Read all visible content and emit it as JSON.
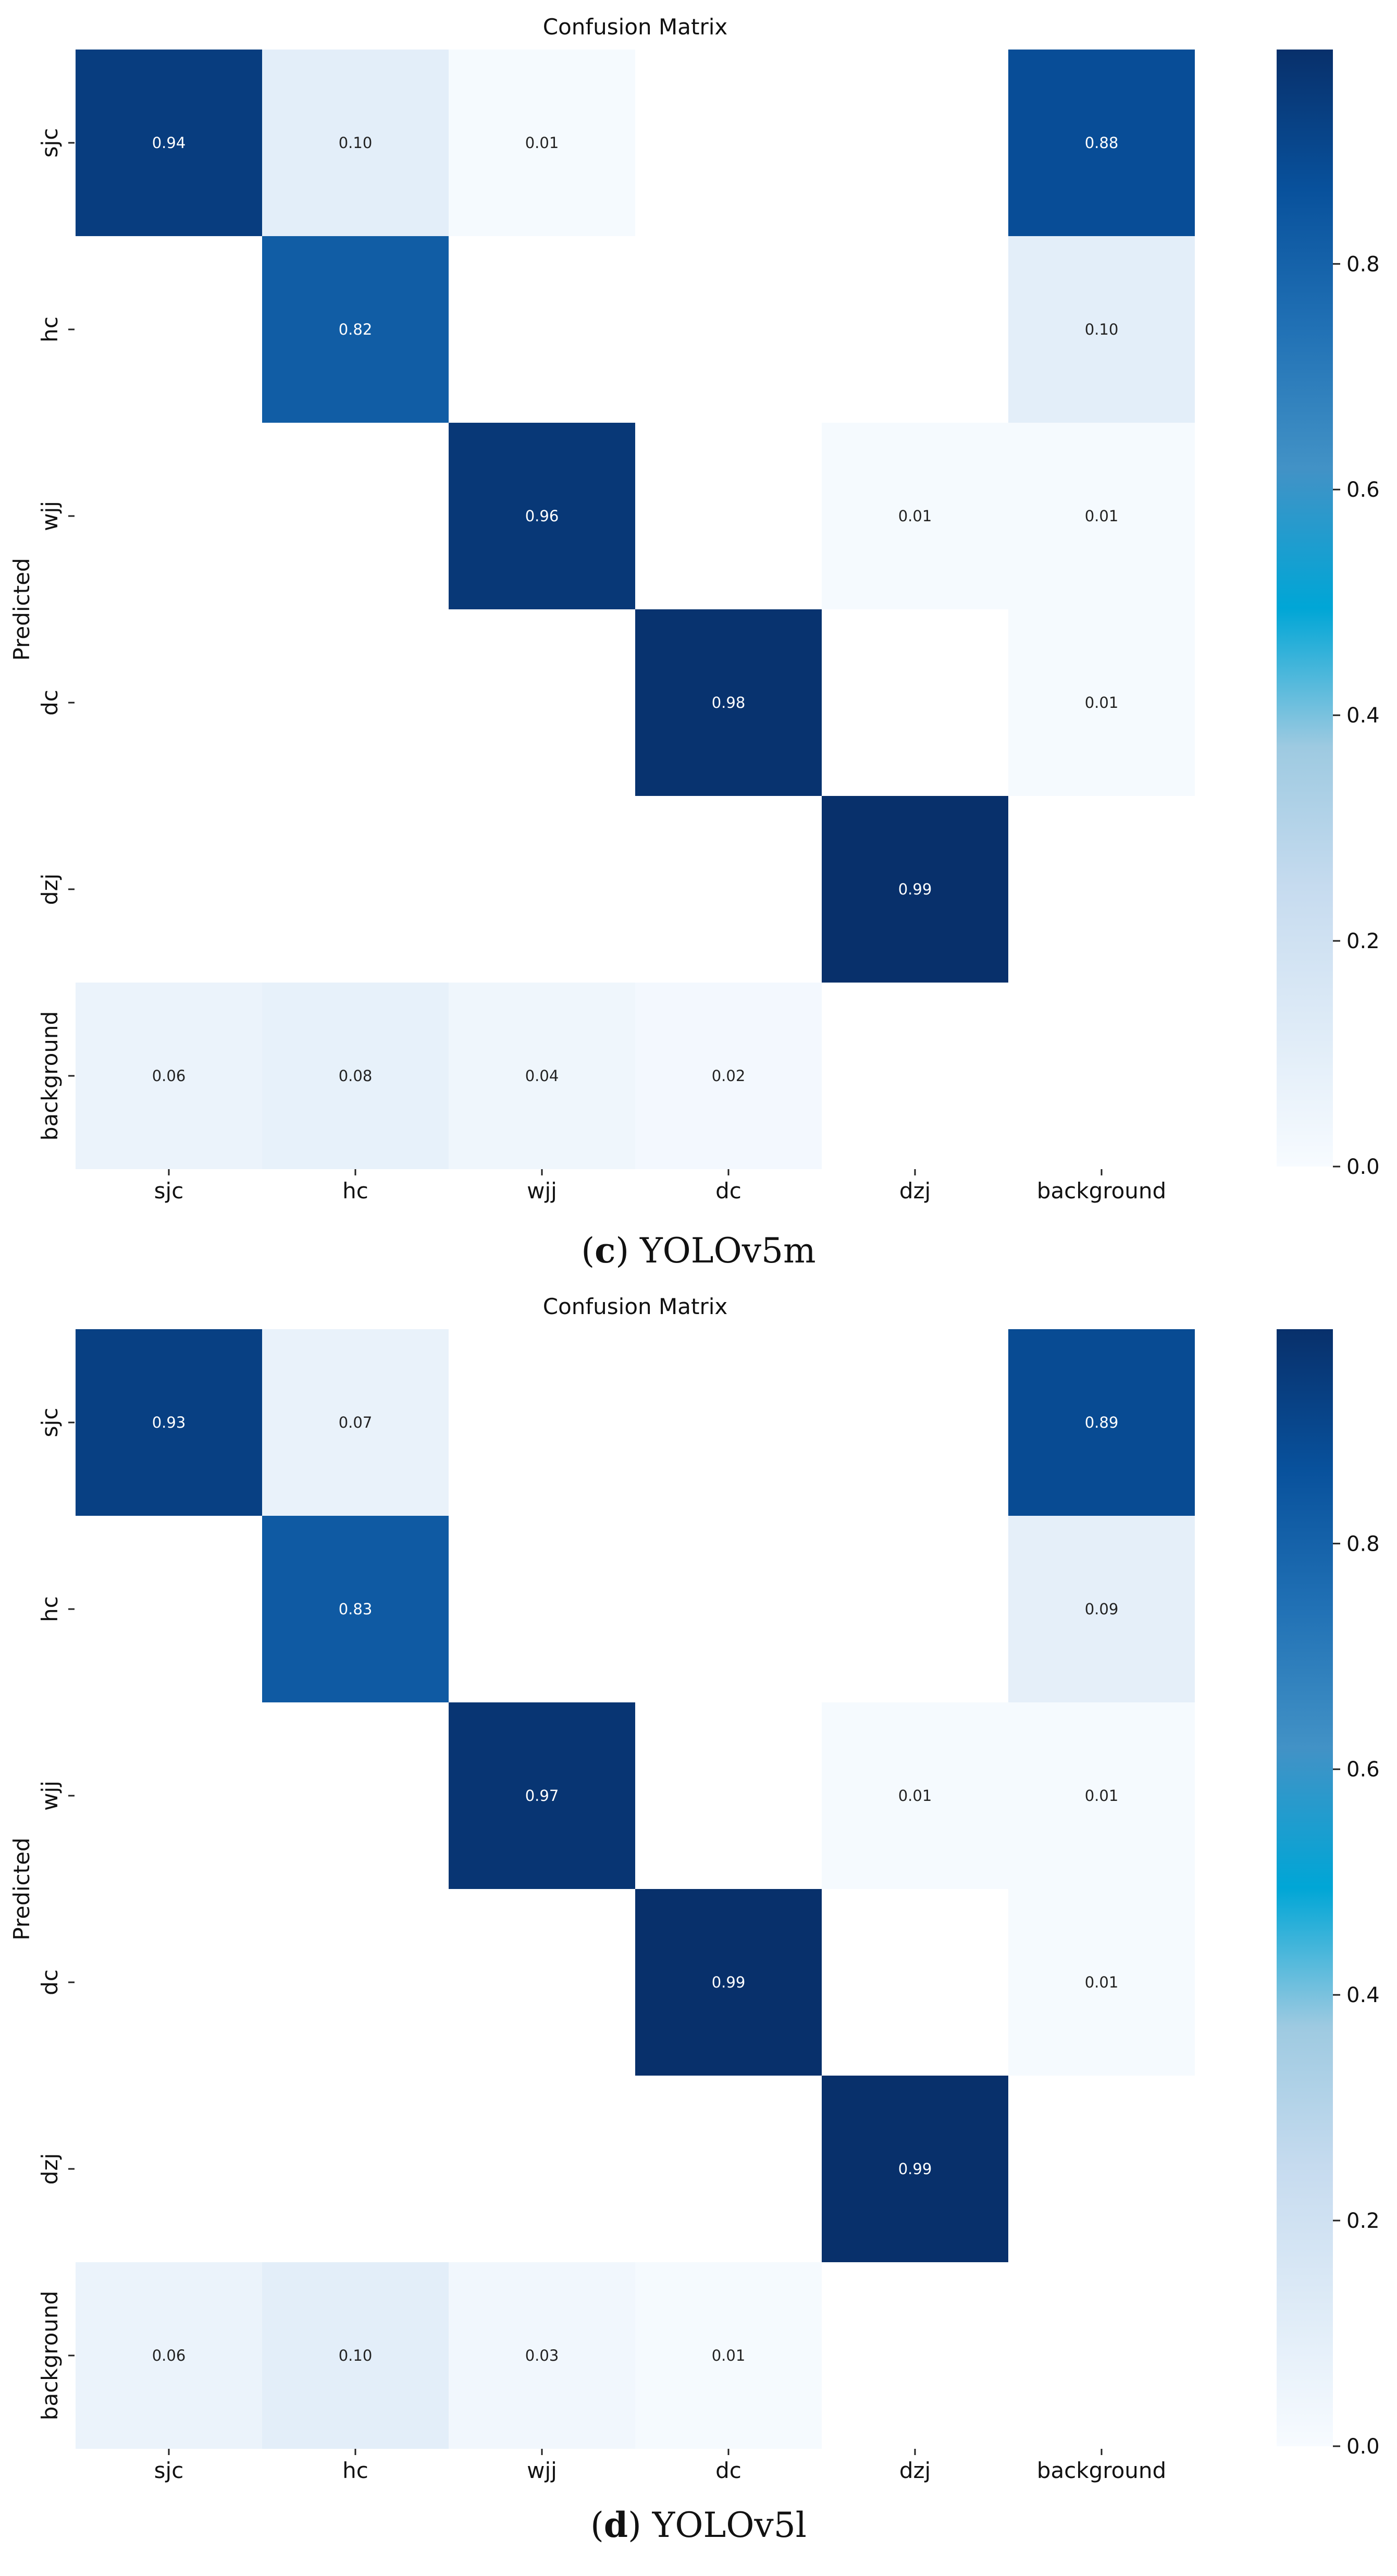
{
  "chart_data": [
    {
      "type": "heatmap",
      "title": "Confusion Matrix",
      "ylabel": "Predicted",
      "xlabel": "",
      "x_categories": [
        "sjc",
        "hc",
        "wjj",
        "dc",
        "dzj",
        "background"
      ],
      "y_categories": [
        "sjc",
        "hc",
        "wjj",
        "dc",
        "dzj",
        "background"
      ],
      "values": [
        [
          0.94,
          0.1,
          0.01,
          null,
          null,
          0.88
        ],
        [
          null,
          0.82,
          null,
          null,
          null,
          0.1
        ],
        [
          null,
          null,
          0.96,
          null,
          0.01,
          0.01
        ],
        [
          null,
          null,
          null,
          0.98,
          null,
          0.01
        ],
        [
          null,
          null,
          null,
          null,
          0.99,
          null
        ],
        [
          0.06,
          0.08,
          0.04,
          0.02,
          null,
          null
        ]
      ],
      "color_range": [
        0.0,
        1.0
      ],
      "colorbar_ticks": [
        "0.0",
        "0.2",
        "0.4",
        "0.6",
        "0.8"
      ],
      "caption_letter": "c",
      "caption_text": " YOLOv5m"
    },
    {
      "type": "heatmap",
      "title": "Confusion Matrix",
      "ylabel": "Predicted",
      "xlabel": "",
      "x_categories": [
        "sjc",
        "hc",
        "wjj",
        "dc",
        "dzj",
        "background"
      ],
      "y_categories": [
        "sjc",
        "hc",
        "wjj",
        "dc",
        "dzj",
        "background"
      ],
      "values": [
        [
          0.93,
          0.07,
          null,
          null,
          null,
          0.89
        ],
        [
          null,
          0.83,
          null,
          null,
          null,
          0.09
        ],
        [
          null,
          null,
          0.97,
          null,
          0.01,
          0.01
        ],
        [
          null,
          null,
          null,
          0.99,
          null,
          0.01
        ],
        [
          null,
          null,
          null,
          null,
          0.99,
          null
        ],
        [
          0.06,
          0.1,
          0.03,
          0.01,
          null,
          null
        ]
      ],
      "color_range": [
        0.0,
        1.0
      ],
      "colorbar_ticks": [
        "0.0",
        "0.2",
        "0.4",
        "0.6",
        "0.8"
      ],
      "caption_letter": "d",
      "caption_text": " YOLOv5l"
    }
  ]
}
